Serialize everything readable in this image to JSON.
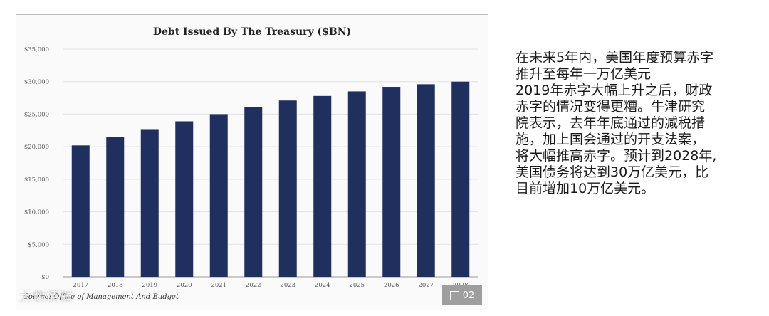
{
  "chart_data": {
    "type": "bar",
    "title": "Debt Issued By The Treasury ($BN)",
    "categories": [
      "2017",
      "2018",
      "2019",
      "2020",
      "2021",
      "2022",
      "2023",
      "2024",
      "2025",
      "2026",
      "2027",
      "2028"
    ],
    "values": [
      20200,
      21500,
      22700,
      23900,
      25000,
      26100,
      27100,
      27800,
      28500,
      29200,
      29600,
      30000
    ],
    "ylim": [
      0,
      35000
    ],
    "yticks": [
      "$0",
      "$5,000",
      "$10,000",
      "$15,000",
      "$20,000",
      "$25,000",
      "$30,000",
      "$35,000"
    ],
    "grid": true,
    "bar_color": "#1f2f5e",
    "source": "Source: Office of Management And Budget"
  },
  "badge": {
    "text": "02"
  },
  "watermark": "大数情报",
  "side_text": {
    "lines": [
      "在未来5年内，美国年度预算赤字",
      "推升至每年一万亿美元",
      "2019年赤字大幅上升之后，财政",
      "赤字的情况变得更糟。牛津研究",
      "院表示，去年年底通过的减税措",
      "施，加上国会通过的开支法案，",
      "将大幅推高赤字。预计到2028年,",
      "美国债务将达到30万亿美元，比",
      "目前增加10万亿美元。"
    ]
  }
}
